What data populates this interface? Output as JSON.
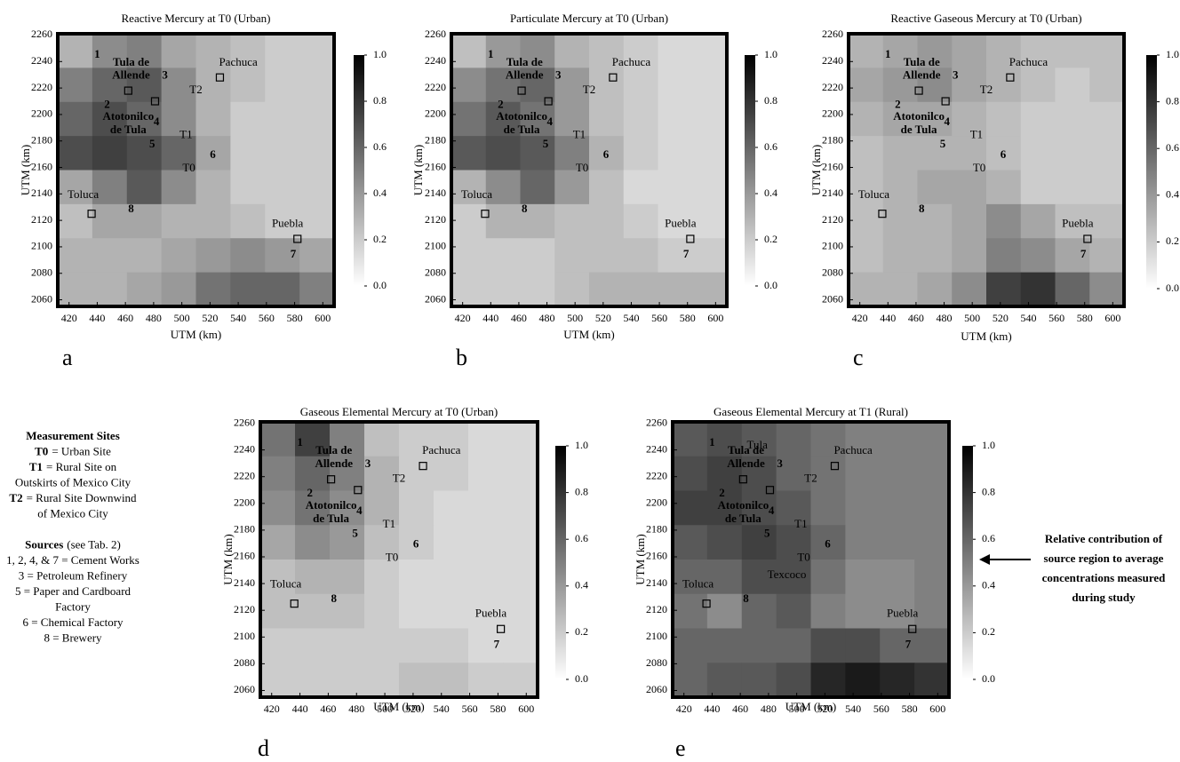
{
  "chart_data": [
    {
      "type": "heatmap",
      "label": "a",
      "title": "Reactive Mercury at T0 (Urban)",
      "xlabel": "UTM (km)",
      "ylabel": "UTM (km)",
      "xlim": [
        412,
        608
      ],
      "ylim": [
        2055,
        2261
      ],
      "xticks": [
        420,
        440,
        460,
        480,
        500,
        520,
        540,
        560,
        580,
        600
      ],
      "yticks": [
        2060,
        2080,
        2100,
        2120,
        2140,
        2160,
        2180,
        2200,
        2220,
        2240,
        2260
      ],
      "colormap": [
        "#ffffff",
        "#000000"
      ],
      "clim": [
        0,
        1
      ],
      "cticks": [
        {
          "value": 0,
          "label": "0.0"
        },
        {
          "value": 0.2,
          "label": "0.2"
        },
        {
          "value": 0.4,
          "label": "0.4"
        },
        {
          "value": 0.6,
          "label": "0.6"
        },
        {
          "value": 0.8,
          "label": "0.8"
        },
        {
          "value": 1,
          "label": "1.0"
        }
      ],
      "z": [
        [
          0.3,
          0.45,
          0.5,
          0.35,
          0.3,
          0.25,
          0.2,
          0.2
        ],
        [
          0.5,
          0.6,
          0.65,
          0.45,
          0.3,
          0.25,
          0.2,
          0.2
        ],
        [
          0.6,
          0.7,
          0.6,
          0.45,
          0.3,
          0.2,
          0.2,
          0.2
        ],
        [
          0.7,
          0.75,
          0.7,
          0.6,
          0.35,
          0.2,
          0.2,
          0.2
        ],
        [
          0.35,
          0.5,
          0.65,
          0.45,
          0.3,
          0.2,
          0.2,
          0.2
        ],
        [
          0.25,
          0.35,
          0.35,
          0.3,
          0.3,
          0.25,
          0.2,
          0.2
        ],
        [
          0.3,
          0.3,
          0.3,
          0.35,
          0.4,
          0.45,
          0.4,
          0.35
        ],
        [
          0.3,
          0.3,
          0.35,
          0.4,
          0.55,
          0.6,
          0.6,
          0.5
        ]
      ]
    },
    {
      "type": "heatmap",
      "label": "b",
      "title": "Particulate Mercury at T0 (Urban)",
      "xlabel": "UTM (km)",
      "ylabel": "UTM (km)",
      "xlim": [
        412,
        608
      ],
      "ylim": [
        2055,
        2261
      ],
      "xticks": [
        420,
        440,
        460,
        480,
        500,
        520,
        540,
        560,
        580,
        600
      ],
      "yticks": [
        2060,
        2080,
        2100,
        2120,
        2140,
        2160,
        2180,
        2200,
        2220,
        2240,
        2260
      ],
      "colormap": [
        "#ffffff",
        "#000000"
      ],
      "clim": [
        0,
        1
      ],
      "cticks": [
        {
          "value": 0,
          "label": "0.0"
        },
        {
          "value": 0.2,
          "label": "0.2"
        },
        {
          "value": 0.4,
          "label": "0.4"
        },
        {
          "value": 0.6,
          "label": "0.6"
        },
        {
          "value": 0.8,
          "label": "0.8"
        },
        {
          "value": 1,
          "label": "1.0"
        }
      ],
      "z": [
        [
          0.25,
          0.4,
          0.45,
          0.3,
          0.25,
          0.2,
          0.15,
          0.15
        ],
        [
          0.45,
          0.55,
          0.6,
          0.4,
          0.25,
          0.2,
          0.15,
          0.15
        ],
        [
          0.55,
          0.65,
          0.55,
          0.4,
          0.25,
          0.2,
          0.15,
          0.15
        ],
        [
          0.65,
          0.7,
          0.65,
          0.5,
          0.3,
          0.2,
          0.15,
          0.15
        ],
        [
          0.3,
          0.45,
          0.6,
          0.4,
          0.25,
          0.15,
          0.15,
          0.15
        ],
        [
          0.2,
          0.3,
          0.3,
          0.25,
          0.25,
          0.2,
          0.15,
          0.15
        ],
        [
          0.2,
          0.2,
          0.2,
          0.25,
          0.25,
          0.25,
          0.2,
          0.2
        ],
        [
          0.2,
          0.2,
          0.2,
          0.25,
          0.3,
          0.3,
          0.3,
          0.3
        ]
      ]
    },
    {
      "type": "heatmap",
      "label": "c",
      "title": "Reactive Gaseous Mercury at T0 (Urban)",
      "xlabel": "UTM (km)",
      "ylabel": "UTM (km)",
      "xlim": [
        412,
        608
      ],
      "ylim": [
        2055,
        2261
      ],
      "xticks": [
        420,
        440,
        460,
        480,
        500,
        520,
        540,
        560,
        580,
        600
      ],
      "yticks": [
        2060,
        2080,
        2100,
        2120,
        2140,
        2160,
        2180,
        2200,
        2220,
        2240,
        2260
      ],
      "colormap": [
        "#ffffff",
        "#000000"
      ],
      "clim": [
        0,
        1
      ],
      "cticks": [
        {
          "value": 0,
          "label": "0.0"
        },
        {
          "value": 0.2,
          "label": "0.2"
        },
        {
          "value": 0.4,
          "label": "0.4"
        },
        {
          "value": 0.6,
          "label": "0.6"
        },
        {
          "value": 0.8,
          "label": "0.8"
        },
        {
          "value": 1,
          "label": "1.0"
        }
      ],
      "z": [
        [
          0.3,
          0.35,
          0.4,
          0.35,
          0.3,
          0.25,
          0.25,
          0.25
        ],
        [
          0.35,
          0.4,
          0.45,
          0.35,
          0.3,
          0.25,
          0.2,
          0.25
        ],
        [
          0.3,
          0.35,
          0.35,
          0.3,
          0.25,
          0.2,
          0.2,
          0.2
        ],
        [
          0.25,
          0.3,
          0.3,
          0.3,
          0.25,
          0.2,
          0.2,
          0.2
        ],
        [
          0.25,
          0.3,
          0.35,
          0.35,
          0.3,
          0.2,
          0.2,
          0.2
        ],
        [
          0.25,
          0.3,
          0.3,
          0.35,
          0.45,
          0.35,
          0.25,
          0.25
        ],
        [
          0.25,
          0.3,
          0.3,
          0.35,
          0.5,
          0.45,
          0.35,
          0.3
        ],
        [
          0.3,
          0.3,
          0.35,
          0.45,
          0.75,
          0.8,
          0.6,
          0.45
        ]
      ]
    },
    {
      "type": "heatmap",
      "label": "d",
      "title": "Gaseous Elemental Mercury at T0 (Urban)",
      "xlabel": "UTM (km)",
      "ylabel": "UTM (km)",
      "xlim": [
        412,
        608
      ],
      "ylim": [
        2055,
        2261
      ],
      "xticks": [
        420,
        440,
        460,
        480,
        500,
        520,
        540,
        560,
        580,
        600
      ],
      "yticks": [
        2060,
        2080,
        2100,
        2120,
        2140,
        2160,
        2180,
        2200,
        2220,
        2240,
        2260
      ],
      "colormap": [
        "#ffffff",
        "#000000"
      ],
      "clim": [
        0,
        1
      ],
      "cticks": [
        {
          "value": 0,
          "label": "0.0"
        },
        {
          "value": 0.2,
          "label": "0.2"
        },
        {
          "value": 0.4,
          "label": "0.4"
        },
        {
          "value": 0.6,
          "label": "0.6"
        },
        {
          "value": 0.8,
          "label": "0.8"
        },
        {
          "value": 1,
          "label": "1.0"
        }
      ],
      "z": [
        [
          0.55,
          0.75,
          0.5,
          0.25,
          0.2,
          0.2,
          0.15,
          0.15
        ],
        [
          0.5,
          0.6,
          0.5,
          0.3,
          0.2,
          0.2,
          0.15,
          0.15
        ],
        [
          0.45,
          0.55,
          0.45,
          0.3,
          0.2,
          0.15,
          0.15,
          0.15
        ],
        [
          0.35,
          0.45,
          0.4,
          0.25,
          0.2,
          0.15,
          0.15,
          0.15
        ],
        [
          0.25,
          0.3,
          0.3,
          0.2,
          0.15,
          0.15,
          0.15,
          0.15
        ],
        [
          0.25,
          0.25,
          0.25,
          0.2,
          0.15,
          0.15,
          0.15,
          0.15
        ],
        [
          0.2,
          0.2,
          0.2,
          0.2,
          0.2,
          0.2,
          0.15,
          0.15
        ],
        [
          0.2,
          0.2,
          0.2,
          0.2,
          0.25,
          0.25,
          0.2,
          0.2
        ]
      ]
    },
    {
      "type": "heatmap",
      "label": "e",
      "title": "Gaseous Elemental Mercury at T1 (Rural)",
      "xlabel": "UTM (km)",
      "ylabel": "UTM (km)",
      "xlim": [
        412,
        608
      ],
      "ylim": [
        2055,
        2261
      ],
      "xticks": [
        420,
        440,
        460,
        480,
        500,
        520,
        540,
        560,
        580,
        600
      ],
      "yticks": [
        2060,
        2080,
        2100,
        2120,
        2140,
        2160,
        2180,
        2200,
        2220,
        2240,
        2260
      ],
      "colormap": [
        "#ffffff",
        "#000000"
      ],
      "clim": [
        0,
        1
      ],
      "cticks": [
        {
          "value": 0,
          "label": "0.0"
        },
        {
          "value": 0.2,
          "label": "0.2"
        },
        {
          "value": 0.4,
          "label": "0.4"
        },
        {
          "value": 0.6,
          "label": "0.6"
        },
        {
          "value": 0.8,
          "label": "0.8"
        },
        {
          "value": 1,
          "label": "1.0"
        }
      ],
      "extra_labels": [
        {
          "text": "Tula",
          "x": 472,
          "y": 2243,
          "color": "black"
        },
        {
          "text": "Texcoco",
          "x": 493,
          "y": 2146,
          "color": "black"
        }
      ],
      "z": [
        [
          0.65,
          0.7,
          0.65,
          0.6,
          0.55,
          0.5,
          0.5,
          0.5
        ],
        [
          0.7,
          0.75,
          0.7,
          0.6,
          0.55,
          0.5,
          0.5,
          0.5
        ],
        [
          0.75,
          0.75,
          0.7,
          0.65,
          0.55,
          0.5,
          0.5,
          0.5
        ],
        [
          0.65,
          0.7,
          0.75,
          0.7,
          0.6,
          0.5,
          0.5,
          0.5
        ],
        [
          0.6,
          0.6,
          0.7,
          0.7,
          0.55,
          0.45,
          0.45,
          0.5
        ],
        [
          0.55,
          0.45,
          0.6,
          0.65,
          0.5,
          0.45,
          0.45,
          0.5
        ],
        [
          0.6,
          0.6,
          0.6,
          0.6,
          0.7,
          0.7,
          0.6,
          0.6
        ],
        [
          0.6,
          0.65,
          0.65,
          0.7,
          0.85,
          0.9,
          0.85,
          0.8
        ]
      ]
    }
  ],
  "map_labels": [
    {
      "text": "1",
      "x": 440,
      "y": 2245,
      "color": "white"
    },
    {
      "text": "Tula de",
      "x": 464,
      "y": 2239,
      "color": "white"
    },
    {
      "text": "Allende",
      "x": 464,
      "y": 2229,
      "color": "white"
    },
    {
      "text": "2",
      "x": 447,
      "y": 2207,
      "color": "white"
    },
    {
      "text": "Atotonilco",
      "x": 462,
      "y": 2198,
      "color": "white"
    },
    {
      "text": "de Tula",
      "x": 462,
      "y": 2188,
      "color": "white"
    },
    {
      "text": "3",
      "x": 488,
      "y": 2229,
      "color": "white"
    },
    {
      "text": "4",
      "x": 482,
      "y": 2194,
      "color": "white"
    },
    {
      "text": "5",
      "x": 479,
      "y": 2177,
      "color": "white"
    },
    {
      "text": "6",
      "x": 522,
      "y": 2169,
      "color": "white"
    },
    {
      "text": "7",
      "x": 579,
      "y": 2094,
      "color": "white"
    },
    {
      "text": "8",
      "x": 464,
      "y": 2128,
      "color": "white"
    },
    {
      "text": "Pachuca",
      "x": 540,
      "y": 2239,
      "color": "black"
    },
    {
      "text": "Toluca",
      "x": 430,
      "y": 2139,
      "color": "black"
    },
    {
      "text": "Puebla",
      "x": 575,
      "y": 2117,
      "color": "black"
    },
    {
      "text": "T0",
      "x": 505,
      "y": 2159,
      "color": "black"
    },
    {
      "text": "T1",
      "x": 503,
      "y": 2184,
      "color": "black"
    },
    {
      "text": "T2",
      "x": 510,
      "y": 2218,
      "color": "black"
    }
  ],
  "markers": {
    "x": [
      527,
      436,
      582,
      462,
      481
    ],
    "y": [
      2228,
      2125,
      2106,
      2218,
      2210
    ]
  },
  "legend": [
    {
      "bold": "Measurement Sites"
    },
    {
      "bold": "T0",
      "text": "= Urban Site"
    },
    {
      "bold": "T1",
      "text": "= Rural Site on"
    },
    {
      "text": "Outskirts of Mexico City"
    },
    {
      "bold": "T2",
      "text": "= Rural Site Downwind"
    },
    {
      "text": "of Mexico City"
    },
    {
      "bold": "Sources",
      "text": "(see Tab. 2)"
    },
    {
      "text": "1, 2, 4, & 7 = Cement Works"
    },
    {
      "text": "3 = Petroleum Refinery"
    },
    {
      "text": "5 = Paper and Cardboard"
    },
    {
      "text": "Factory"
    },
    {
      "text": "6 = Chemical Factory"
    },
    {
      "text": "8 = Brewery"
    }
  ],
  "annotation": [
    "Relative contribution of",
    "source region to average",
    "concentrations measured",
    "during study"
  ]
}
